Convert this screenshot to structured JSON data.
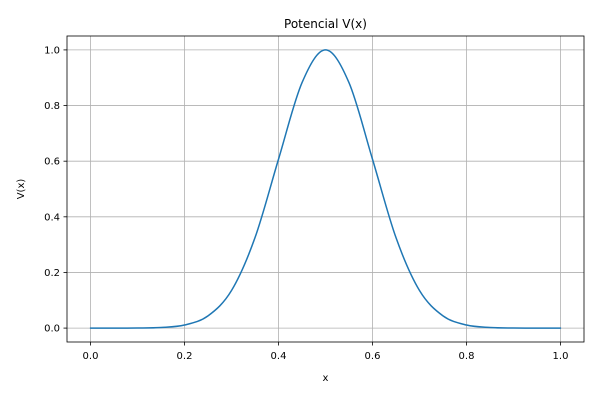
{
  "chart_data": {
    "type": "line",
    "title": "Potencial V(x)",
    "xlabel": "x",
    "ylabel": "V(x)",
    "xlim": [
      -0.05,
      1.05
    ],
    "ylim": [
      -0.05,
      1.05
    ],
    "xticks": [
      0.0,
      0.2,
      0.4,
      0.6,
      0.8,
      1.0
    ],
    "yticks": [
      0.0,
      0.2,
      0.4,
      0.6,
      0.8,
      1.0
    ],
    "xtick_labels": [
      "0.0",
      "0.2",
      "0.4",
      "0.6",
      "0.8",
      "1.0"
    ],
    "ytick_labels": [
      "0.0",
      "0.2",
      "0.4",
      "0.6",
      "0.8",
      "1.0"
    ],
    "grid": true,
    "series": [
      {
        "color": "#1f77b4",
        "x": [
          0.0,
          0.05,
          0.1,
          0.15,
          0.2,
          0.25,
          0.3,
          0.35,
          0.4,
          0.45,
          0.5,
          0.55,
          0.6,
          0.65,
          0.7,
          0.75,
          0.8,
          0.85,
          0.9,
          0.95,
          1.0
        ],
        "y": [
          0.0,
          0.0,
          0.0003,
          0.0022,
          0.011,
          0.044,
          0.135,
          0.325,
          0.607,
          0.882,
          1.0,
          0.882,
          0.607,
          0.325,
          0.135,
          0.044,
          0.011,
          0.0022,
          0.0003,
          0.0,
          0.0
        ]
      }
    ]
  },
  "colors": {
    "line": "#1f77b4",
    "grid": "#b0b0b0",
    "axis": "#000000"
  }
}
